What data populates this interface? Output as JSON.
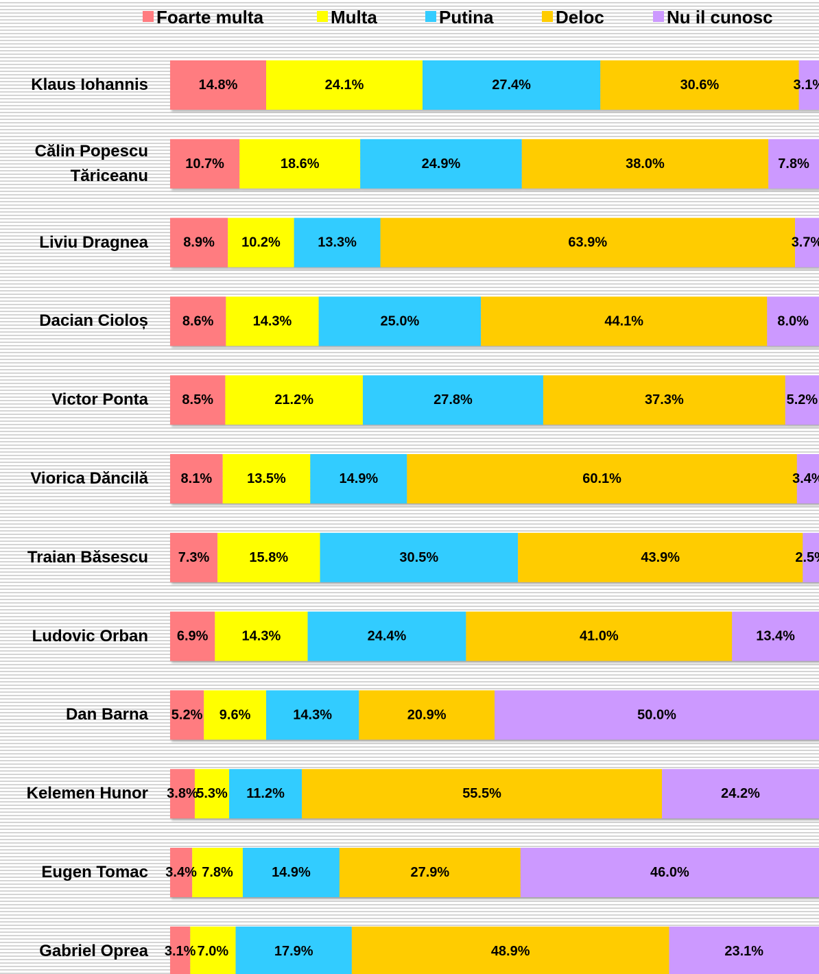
{
  "chart_data": {
    "type": "stacked-bar-horizontal",
    "categories": [
      "Klaus Iohannis",
      "Călin Popescu Tăriceanu",
      "Liviu Dragnea",
      "Dacian Cioloș",
      "Victor Ponta",
      "Viorica Dăncilă",
      "Traian Băsescu",
      "Ludovic Orban",
      "Dan Barna",
      "Kelemen Hunor",
      "Eugen Tomac",
      "Gabriel Oprea"
    ],
    "xlim": [
      0,
      100
    ],
    "legend": "top",
    "series": [
      {
        "name": "Foarte multa",
        "color": "#ff7c80",
        "values": [
          14.8,
          10.7,
          8.9,
          8.6,
          8.5,
          8.1,
          7.3,
          6.9,
          5.2,
          3.8,
          3.4,
          3.1
        ],
        "value_labels": [
          "14.8%",
          "10.7%",
          "8.9%",
          "8.6%",
          "8.5%",
          "8.1%",
          "7.3%",
          "6.9%",
          "5.2%",
          "3.8%",
          "3.4%",
          "3.1%"
        ]
      },
      {
        "name": "Multa",
        "color": "#ffff00",
        "values": [
          24.1,
          18.6,
          10.2,
          14.3,
          21.2,
          13.5,
          15.8,
          14.3,
          9.6,
          5.3,
          7.8,
          7.0
        ],
        "value_labels": [
          "24.1%",
          "18.6%",
          "10.2%",
          "14.3%",
          "21.2%",
          "13.5%",
          "15.8%",
          "14.3%",
          "9.6%",
          "5.3%",
          "7.8%",
          "7.0%"
        ]
      },
      {
        "name": "Putina",
        "color": "#33ccff",
        "values": [
          27.4,
          24.9,
          13.3,
          25.0,
          27.8,
          14.9,
          30.5,
          24.4,
          14.3,
          11.2,
          14.9,
          17.9
        ],
        "value_labels": [
          "27.4%",
          "24.9%",
          "13.3%",
          "25.0%",
          "27.8%",
          "14.9%",
          "30.5%",
          "24.4%",
          "14.3%",
          "11.2%",
          "14.9%",
          "17.9%"
        ]
      },
      {
        "name": "Deloc",
        "color": "#ffcc00",
        "values": [
          30.6,
          38.0,
          63.9,
          44.1,
          37.3,
          60.1,
          43.9,
          41.0,
          20.9,
          55.5,
          27.9,
          48.9
        ],
        "value_labels": [
          "30.6%",
          "38.0%",
          "63.9%",
          "44.1%",
          "37.3%",
          "60.1%",
          "43.9%",
          "41.0%",
          "20.9%",
          "55.5%",
          "27.9%",
          "48.9%"
        ]
      },
      {
        "name": "Nu il cunosc",
        "color": "#cc99ff",
        "values": [
          3.1,
          7.8,
          3.7,
          8.0,
          5.2,
          3.4,
          2.5,
          13.4,
          50.0,
          24.2,
          46.0,
          23.1
        ],
        "value_labels": [
          "3.1%",
          "7.8%",
          "3.7%",
          "8.0%",
          "5.2%",
          "3.4%",
          "2.5%",
          "13.4%",
          "50.0%",
          "24.2%",
          "46.0%",
          "23.1%"
        ]
      }
    ]
  }
}
